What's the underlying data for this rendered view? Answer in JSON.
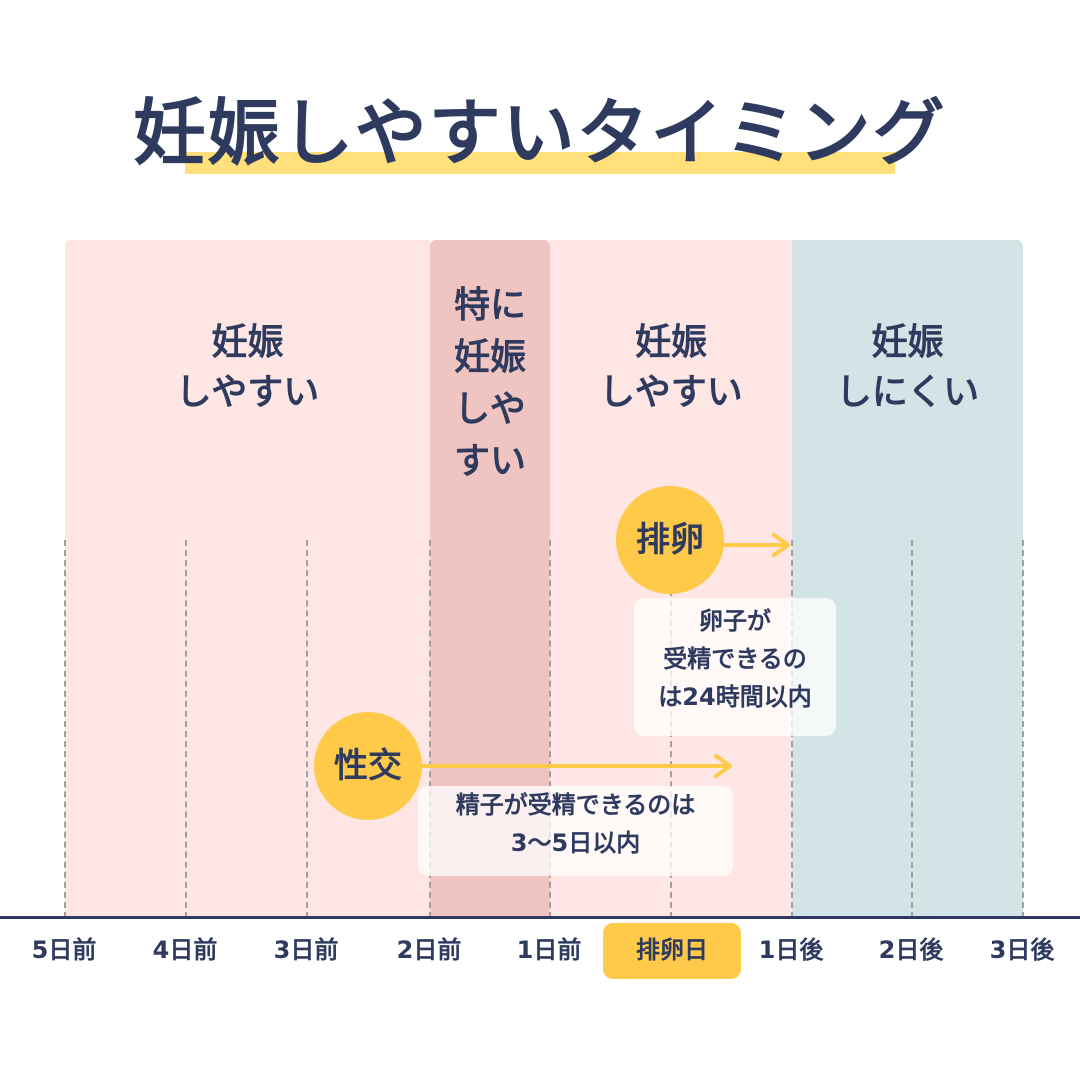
{
  "title": "妊娠しやすいタイミング",
  "zones": [
    {
      "line1": "妊娠",
      "line2": "しやすい"
    },
    {
      "line1": "特に",
      "line2": "妊娠",
      "line3": "しや",
      "line4": "すい"
    },
    {
      "line1": "妊娠",
      "line2": "しやすい"
    },
    {
      "line1": "妊娠",
      "line2": "しにくい"
    }
  ],
  "ovulation_label": "排卵",
  "egg_note": {
    "line1": "卵子が",
    "line2": "受精できるの",
    "line3": "は24時間以内"
  },
  "intercourse_label": "性交",
  "sperm_note": {
    "line1": "精子が受精できるのは",
    "line2": "3〜5日以内"
  },
  "axis_labels": [
    "5日前",
    "4日前",
    "3日前",
    "2日前",
    "1日前",
    "排卵日",
    "1日後",
    "2日後",
    "3日後"
  ],
  "colors": {
    "text": "#2f3a5f",
    "accent_yellow": "#ffc94a",
    "title_highlight": "#ffe07a",
    "zone_likely": "#fde6e4",
    "zone_most_likely": "#f0c4c1",
    "zone_unlikely": "#d3e4e6"
  }
}
